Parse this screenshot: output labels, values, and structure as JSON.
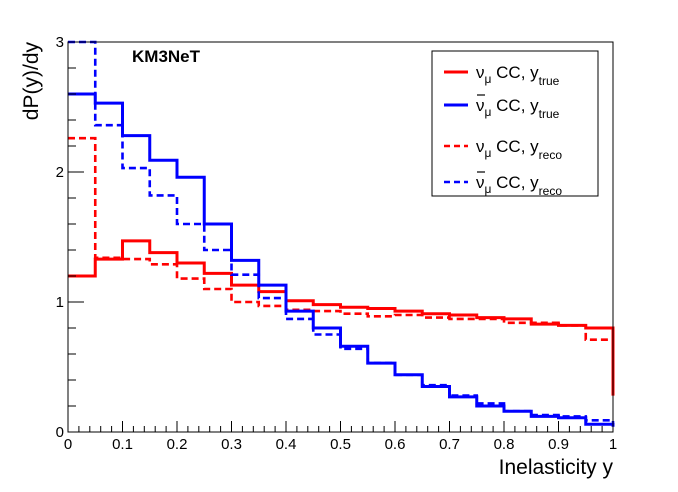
{
  "chart_data": {
    "type": "step-histogram",
    "title": "KM3NeT",
    "xlabel": "Inelasticity y",
    "ylabel": "dP(y)/dy",
    "xlim": [
      0,
      1
    ],
    "ylim": [
      0,
      3
    ],
    "x_ticks": [
      "0",
      "0.1",
      "0.2",
      "0.3",
      "0.4",
      "0.5",
      "0.6",
      "0.7",
      "0.8",
      "0.9",
      "1"
    ],
    "y_ticks": [
      "0",
      "1",
      "2",
      "3"
    ],
    "bin_edges": [
      0,
      0.05,
      0.1,
      0.15,
      0.2,
      0.25,
      0.3,
      0.35,
      0.4,
      0.45,
      0.5,
      0.55,
      0.6,
      0.65,
      0.7,
      0.75,
      0.8,
      0.85,
      0.9,
      0.95,
      1.0
    ],
    "legend_position": "top-right",
    "series": [
      {
        "key": "numu-true",
        "particle": "ν",
        "bar": false,
        "sub": "μ",
        "mid": " CC, y",
        "ysub": "true",
        "color": "#ff0000",
        "dashed": false,
        "values": [
          1.2,
          1.33,
          1.47,
          1.38,
          1.3,
          1.22,
          1.13,
          1.08,
          1.01,
          0.98,
          0.96,
          0.95,
          0.93,
          0.91,
          0.9,
          0.88,
          0.87,
          0.83,
          0.82,
          0.8,
          0.28
        ]
      },
      {
        "key": "numubar-true",
        "particle": "ν",
        "bar": true,
        "sub": "μ",
        "mid": " CC, y",
        "ysub": "true",
        "color": "#0000ff",
        "dashed": false,
        "values": [
          2.6,
          2.53,
          2.28,
          2.09,
          1.96,
          1.6,
          1.32,
          1.13,
          0.93,
          0.8,
          0.66,
          0.53,
          0.44,
          0.35,
          0.27,
          0.2,
          0.16,
          0.12,
          0.11,
          0.06,
          0.04
        ]
      },
      {
        "key": "numu-reco",
        "particle": "ν",
        "bar": false,
        "sub": "μ",
        "mid": " CC, y",
        "ysub": "reco",
        "color": "#ff0000",
        "dashed": true,
        "values": [
          2.26,
          1.34,
          1.33,
          1.29,
          1.18,
          1.1,
          1.0,
          0.97,
          0.94,
          0.93,
          0.91,
          0.89,
          0.9,
          0.88,
          0.87,
          0.87,
          0.84,
          0.84,
          0.82,
          0.71,
          0.41
        ]
      },
      {
        "key": "numubar-reco",
        "particle": "ν",
        "bar": true,
        "sub": "μ",
        "mid": " CC, y",
        "ysub": "reco",
        "color": "#0000ff",
        "dashed": true,
        "values": [
          3.0,
          2.36,
          2.03,
          1.82,
          1.6,
          1.4,
          1.21,
          1.03,
          0.87,
          0.75,
          0.64,
          0.53,
          0.44,
          0.36,
          0.28,
          0.22,
          0.16,
          0.13,
          0.12,
          0.09,
          0.07
        ]
      }
    ]
  }
}
